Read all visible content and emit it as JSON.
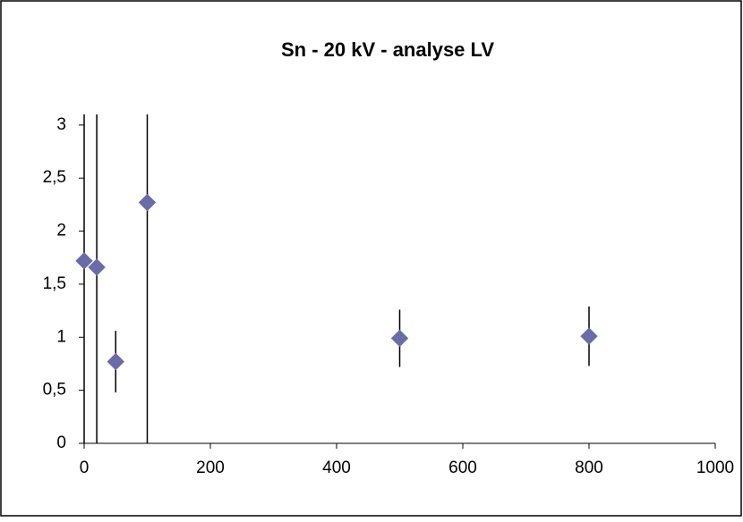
{
  "chart_data": {
    "type": "scatter",
    "title": "Sn - 20 kV - analyse LV",
    "x": [
      0,
      20,
      50,
      100,
      500,
      800
    ],
    "series": [
      {
        "color": "#6b6ba8",
        "values": [
          1.72,
          1.66,
          0.77,
          2.27,
          0.99,
          1.01
        ],
        "errors": [
          2,
          2,
          0.29,
          2.5,
          0.27,
          0.28
        ]
      }
    ],
    "xlim": [
      0,
      1000
    ],
    "ylim": [
      0,
      3.1
    ],
    "xticks": [
      0,
      200,
      400,
      600,
      800,
      1000
    ],
    "yticks": [
      0,
      {
        "value": 0.5,
        "label": "0,5"
      },
      1,
      {
        "value": 1.5,
        "label": "1,5"
      },
      2,
      {
        "value": 2.5,
        "label": "2,5"
      },
      3
    ],
    "grid": false
  }
}
